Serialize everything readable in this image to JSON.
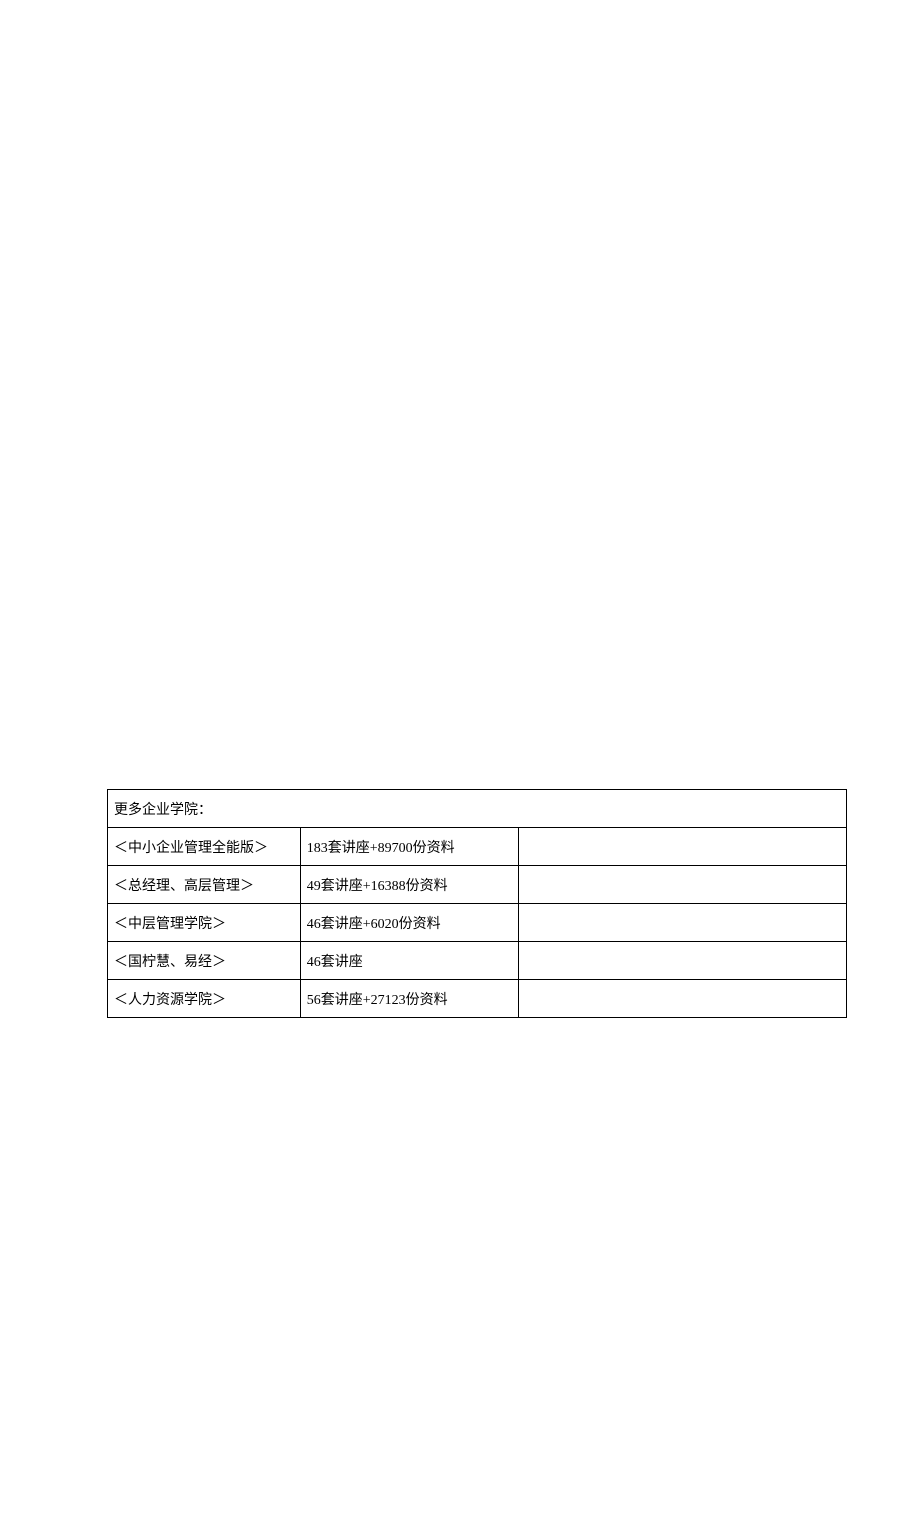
{
  "table": {
    "header": "更多企业学院：",
    "rows": [
      {
        "name": "＜中小企业管理全能版＞",
        "content": "183套讲座+89700份资料",
        "link": ""
      },
      {
        "name": "＜总经理、高层管理＞",
        "content": "49套讲座+16388份资料",
        "link": ""
      },
      {
        "name": "＜中层管理学院＞",
        "content": "46套讲座+6020份资料",
        "link": ""
      },
      {
        "name": "＜国柠慧、易经＞",
        "content": "46套讲座",
        "link": ""
      },
      {
        "name": "＜人力资源学院＞",
        "content": "56套讲座+27123份资料",
        "link": ""
      }
    ]
  }
}
